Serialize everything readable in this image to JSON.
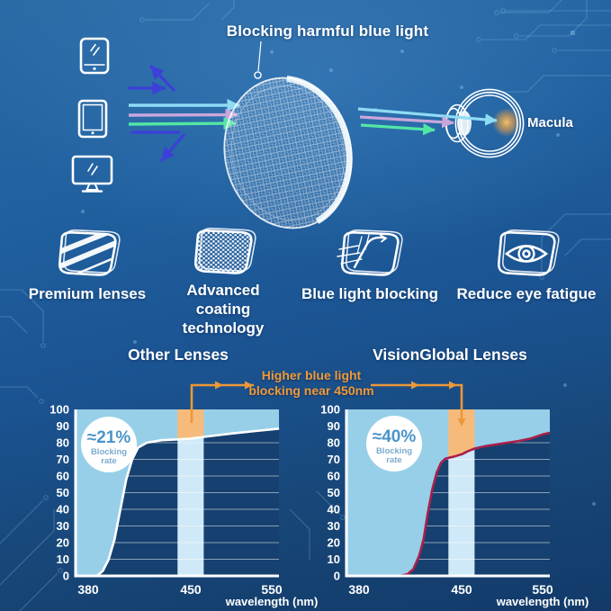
{
  "hero": {
    "title": "Blocking harmful blue light",
    "macula_label": "Macula",
    "device_icons": [
      "smartphone-icon",
      "tablet-icon",
      "monitor-icon"
    ],
    "colors": {
      "reflected_arrow": "#3c40d8",
      "ray_cyan": "#8edcf4",
      "ray_violet": "#c9a6dc",
      "ray_green": "#52e6a4",
      "macula_glow": "#f7a43c"
    }
  },
  "features": [
    {
      "icon": "striped-lens-icon",
      "label": "Premium lenses"
    },
    {
      "icon": "coated-lens-icon",
      "label": "Advanced coating technology"
    },
    {
      "icon": "blue-light-reflect-icon",
      "label": "Blue light blocking"
    },
    {
      "icon": "eye-lens-icon",
      "label": "Reduce eye fatigue"
    }
  ],
  "comparison": {
    "annotation_line1": "Higher blue light",
    "annotation_line2": "blocking near 450nm",
    "annotation_color": "#f09a38"
  },
  "chart_data": [
    {
      "type": "area",
      "title": "Other Lenses",
      "badge_value": "≈21%",
      "badge_label_line1": "Blocking",
      "badge_label_line2": "rate",
      "xlabel": "wavelength (nm)",
      "x_ticks": [
        380,
        450,
        550
      ],
      "y_ticks": [
        0,
        10,
        20,
        30,
        40,
        50,
        60,
        70,
        80,
        90,
        100
      ],
      "ylim": [
        0,
        100
      ],
      "x_range_nm": [
        380,
        559
      ],
      "highlight_band_nm": [
        441,
        466
      ],
      "grid": true,
      "curve_color": "#ffffff",
      "fill_color": "#97cfe9",
      "band_fill_color": "#cfe9f8",
      "highlight_color": "#f6bb7a",
      "badge_offset": [
        37,
        39
      ],
      "points": [
        [
          380,
          0
        ],
        [
          386,
          0
        ],
        [
          390,
          3
        ],
        [
          394,
          10
        ],
        [
          398,
          22
        ],
        [
          402,
          40
        ],
        [
          406,
          58
        ],
        [
          410,
          70
        ],
        [
          414,
          77
        ],
        [
          420,
          80
        ],
        [
          430,
          81.5
        ],
        [
          441,
          82
        ],
        [
          450,
          82.5
        ],
        [
          466,
          83.5
        ],
        [
          500,
          85.5
        ],
        [
          530,
          87
        ],
        [
          550,
          88
        ],
        [
          559,
          88.5
        ]
      ]
    },
    {
      "type": "area",
      "title": "VisionGlobal Lenses",
      "badge_value": "≈40%",
      "badge_label_line1": "Blocking",
      "badge_label_line2": "rate",
      "xlabel": "wavelength (nm)",
      "x_ticks": [
        380,
        450,
        550
      ],
      "y_ticks": [
        0,
        10,
        20,
        30,
        40,
        50,
        60,
        70,
        80,
        90,
        100
      ],
      "ylim": [
        0,
        100
      ],
      "x_range_nm": [
        380,
        559
      ],
      "highlight_band_nm": [
        441,
        466
      ],
      "grid": true,
      "curve_color": "#a8204a",
      "fill_color": "#97cfe9",
      "band_fill_color": "#cfe9f8",
      "highlight_color": "#f6bb7a",
      "badge_offset": [
        53,
        38
      ],
      "points": [
        [
          380,
          0
        ],
        [
          408,
          0
        ],
        [
          413,
          1
        ],
        [
          417,
          4
        ],
        [
          421,
          12
        ],
        [
          424,
          22
        ],
        [
          427,
          38
        ],
        [
          430,
          52
        ],
        [
          433,
          62
        ],
        [
          436,
          68
        ],
        [
          439,
          70.5
        ],
        [
          444,
          71.5
        ],
        [
          450,
          73
        ],
        [
          458,
          75
        ],
        [
          466,
          76.5
        ],
        [
          480,
          78
        ],
        [
          500,
          79.5
        ],
        [
          520,
          81
        ],
        [
          535,
          82.5
        ],
        [
          550,
          85
        ],
        [
          559,
          86
        ]
      ]
    }
  ]
}
